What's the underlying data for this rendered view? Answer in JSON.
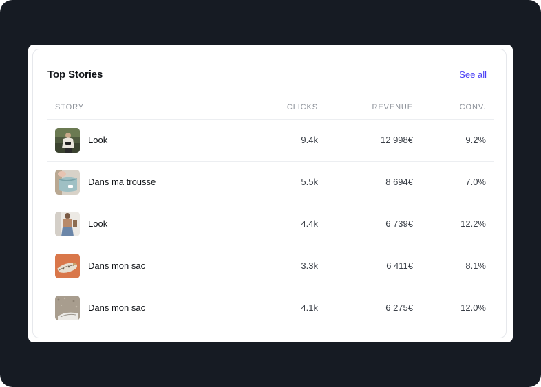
{
  "card": {
    "title": "Top Stories",
    "see_all_label": "See all"
  },
  "table": {
    "headers": {
      "story": "STORY",
      "clicks": "CLICKS",
      "revenue": "REVENUE",
      "conv": "CONV."
    },
    "rows": [
      {
        "title": "Look",
        "clicks": "9.4k",
        "revenue": "12 998€",
        "conv": "9.2%",
        "thumbnail": "person-outdoor-photo"
      },
      {
        "title": "Dans ma trousse",
        "clicks": "5.5k",
        "revenue": "8 694€",
        "conv": "7.0%",
        "thumbnail": "pouch-photo"
      },
      {
        "title": "Look",
        "clicks": "4.4k",
        "revenue": "6 739€",
        "conv": "12.2%",
        "thumbnail": "person-indoor-photo"
      },
      {
        "title": "Dans mon sac",
        "clicks": "3.3k",
        "revenue": "6 411€",
        "conv": "8.1%",
        "thumbnail": "bag-orange-photo"
      },
      {
        "title": "Dans mon sac",
        "clicks": "4.1k",
        "revenue": "6 275€",
        "conv": "12.0%",
        "thumbnail": "bag-gravel-photo"
      }
    ]
  },
  "colors": {
    "background": "#161b23",
    "accent": "#4a3ff5"
  }
}
